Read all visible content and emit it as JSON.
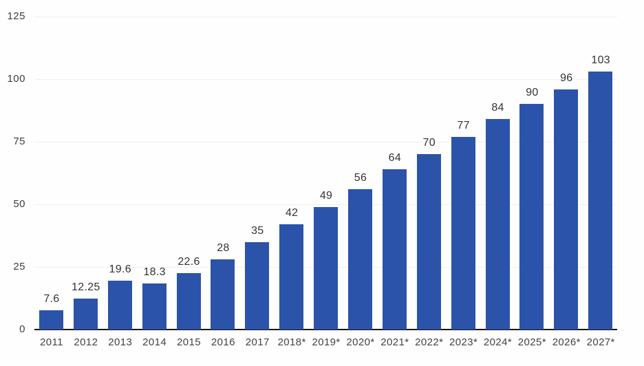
{
  "chart_data": {
    "type": "bar",
    "title": "",
    "xlabel": "",
    "ylabel": "",
    "categories": [
      "2011",
      "2012",
      "2013",
      "2014",
      "2015",
      "2016",
      "2017",
      "2018*",
      "2019*",
      "2020*",
      "2021*",
      "2022*",
      "2023*",
      "2024*",
      "2025*",
      "2026*",
      "2027*"
    ],
    "values": [
      7.6,
      12.25,
      19.6,
      18.3,
      22.6,
      28,
      35,
      42,
      49,
      56,
      64,
      70,
      77,
      84,
      90,
      96,
      103
    ],
    "value_labels": [
      "7.6",
      "12.25",
      "19.6",
      "18.3",
      "22.6",
      "28",
      "35",
      "42",
      "49",
      "56",
      "64",
      "70",
      "77",
      "84",
      "90",
      "96",
      "103"
    ],
    "ylim": [
      0,
      125
    ],
    "yticks": [
      0,
      25,
      50,
      75,
      100,
      125
    ],
    "grid": "faint horizontal gridlines at y ticks",
    "legend": "none",
    "colors": {
      "bar": "#2b53aa",
      "axis": "#161616",
      "value_label": "#333333",
      "tick_label": "#3d3d3d",
      "gridline": "#efefef",
      "background": "#fefefe"
    }
  }
}
